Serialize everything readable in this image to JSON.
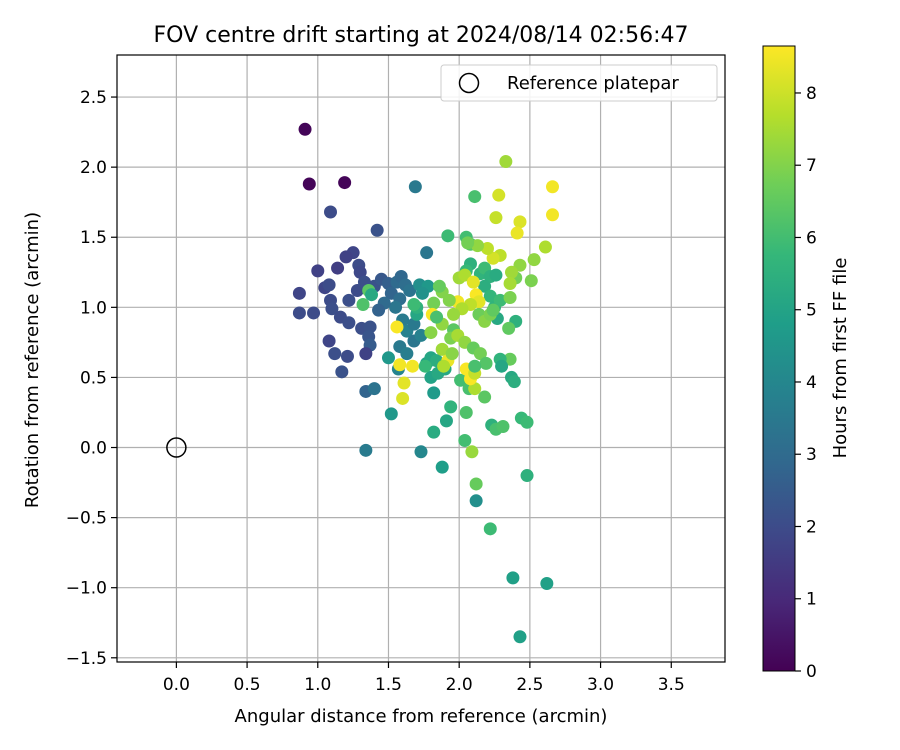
{
  "chart_data": {
    "type": "scatter",
    "title": "FOV centre drift starting at 2024/08/14 02:56:47",
    "xlabel": "Angular distance from reference (arcmin)",
    "ylabel": "Rotation from reference (arcmin)",
    "xlim": [
      -0.42,
      3.88
    ],
    "ylim": [
      -1.53,
      2.8
    ],
    "xticks": [
      0.0,
      0.5,
      1.0,
      1.5,
      2.0,
      2.5,
      3.0,
      3.5
    ],
    "yticks": [
      -1.5,
      -1.0,
      -0.5,
      0.0,
      0.5,
      1.0,
      1.5,
      2.0,
      2.5
    ],
    "xtick_labels": [
      "0.0",
      "0.5",
      "1.0",
      "1.5",
      "2.0",
      "2.5",
      "3.0",
      "3.5"
    ],
    "ytick_labels": [
      "−1.5",
      "−1.0",
      "−0.5",
      "0.0",
      "0.5",
      "1.0",
      "1.5",
      "2.0",
      "2.5"
    ],
    "grid": true,
    "legend": {
      "placement": "top-right",
      "entries": [
        {
          "label": "Reference platepar",
          "marker": "open-circle"
        }
      ]
    },
    "reference_point": {
      "x": 0.0,
      "y": 0.0,
      "label": "Reference platepar"
    },
    "colorbar": {
      "label": "Hours from first FF file",
      "min": 0,
      "max": 8.65,
      "ticks": [
        0,
        1,
        2,
        3,
        4,
        5,
        6,
        7,
        8
      ],
      "tick_labels": [
        "0",
        "1",
        "2",
        "3",
        "4",
        "5",
        "6",
        "7",
        "8"
      ],
      "colormap": "viridis"
    },
    "colormap_stops": [
      "#440154",
      "#482878",
      "#3e4989",
      "#31688e",
      "#26828e",
      "#1f9e89",
      "#35b779",
      "#6ece58",
      "#b5de2b",
      "#fde725"
    ],
    "points": [
      {
        "x": 0.91,
        "y": 2.27,
        "c": 0.1
      },
      {
        "x": 0.94,
        "y": 1.88,
        "c": 0.1
      },
      {
        "x": 1.19,
        "y": 1.89,
        "c": 0.1
      },
      {
        "x": 1.09,
        "y": 1.68,
        "c": 2.0
      },
      {
        "x": 1.42,
        "y": 1.55,
        "c": 2.2
      },
      {
        "x": 1.69,
        "y": 1.86,
        "c": 3.5
      },
      {
        "x": 1.25,
        "y": 1.39,
        "c": 1.8
      },
      {
        "x": 1.2,
        "y": 1.36,
        "c": 1.7
      },
      {
        "x": 1.14,
        "y": 1.28,
        "c": 1.6
      },
      {
        "x": 1.29,
        "y": 1.3,
        "c": 2.0
      },
      {
        "x": 1.3,
        "y": 1.25,
        "c": 1.9
      },
      {
        "x": 1.0,
        "y": 1.26,
        "c": 1.7
      },
      {
        "x": 1.05,
        "y": 1.14,
        "c": 1.8
      },
      {
        "x": 1.08,
        "y": 1.16,
        "c": 2.0
      },
      {
        "x": 0.87,
        "y": 1.1,
        "c": 1.8
      },
      {
        "x": 1.09,
        "y": 1.05,
        "c": 2.0
      },
      {
        "x": 1.1,
        "y": 0.99,
        "c": 2.1
      },
      {
        "x": 0.87,
        "y": 0.96,
        "c": 2.0
      },
      {
        "x": 0.97,
        "y": 0.96,
        "c": 2.0
      },
      {
        "x": 1.16,
        "y": 0.93,
        "c": 2.0
      },
      {
        "x": 1.22,
        "y": 0.89,
        "c": 2.1
      },
      {
        "x": 1.31,
        "y": 0.85,
        "c": 2.1
      },
      {
        "x": 1.37,
        "y": 0.86,
        "c": 2.2
      },
      {
        "x": 1.36,
        "y": 0.79,
        "c": 2.3
      },
      {
        "x": 1.37,
        "y": 0.73,
        "c": 2.5
      },
      {
        "x": 1.08,
        "y": 0.76,
        "c": 1.8
      },
      {
        "x": 1.12,
        "y": 0.67,
        "c": 2.1
      },
      {
        "x": 1.21,
        "y": 0.65,
        "c": 2.0
      },
      {
        "x": 1.34,
        "y": 0.67,
        "c": 1.7
      },
      {
        "x": 1.17,
        "y": 0.54,
        "c": 2.2
      },
      {
        "x": 1.34,
        "y": 0.4,
        "c": 2.8
      },
      {
        "x": 1.4,
        "y": 0.42,
        "c": 3.3
      },
      {
        "x": 1.34,
        "y": -0.02,
        "c": 3.6
      },
      {
        "x": 1.22,
        "y": 1.05,
        "c": 2.1
      },
      {
        "x": 1.28,
        "y": 1.12,
        "c": 2.0
      },
      {
        "x": 1.33,
        "y": 1.18,
        "c": 2.1
      },
      {
        "x": 1.4,
        "y": 1.15,
        "c": 2.2
      },
      {
        "x": 1.45,
        "y": 1.2,
        "c": 2.4
      },
      {
        "x": 1.5,
        "y": 1.17,
        "c": 2.6
      },
      {
        "x": 1.52,
        "y": 1.1,
        "c": 2.8
      },
      {
        "x": 1.56,
        "y": 1.18,
        "c": 3.0
      },
      {
        "x": 1.59,
        "y": 1.22,
        "c": 2.9
      },
      {
        "x": 1.62,
        "y": 1.16,
        "c": 3.1
      },
      {
        "x": 1.65,
        "y": 1.12,
        "c": 3.3
      },
      {
        "x": 1.58,
        "y": 1.06,
        "c": 3.1
      },
      {
        "x": 1.55,
        "y": 1.0,
        "c": 3.4
      },
      {
        "x": 1.47,
        "y": 1.03,
        "c": 3.0
      },
      {
        "x": 1.43,
        "y": 0.98,
        "c": 2.7
      },
      {
        "x": 1.6,
        "y": 0.91,
        "c": 3.6
      },
      {
        "x": 1.63,
        "y": 0.83,
        "c": 3.8
      },
      {
        "x": 1.68,
        "y": 0.88,
        "c": 3.5
      },
      {
        "x": 1.58,
        "y": 0.72,
        "c": 3.5
      },
      {
        "x": 1.63,
        "y": 0.67,
        "c": 3.7
      },
      {
        "x": 1.57,
        "y": 0.56,
        "c": 3.9
      },
      {
        "x": 1.68,
        "y": 0.76,
        "c": 3.4
      },
      {
        "x": 1.73,
        "y": 0.8,
        "c": 3.8
      },
      {
        "x": 1.77,
        "y": 1.39,
        "c": 3.4
      },
      {
        "x": 1.72,
        "y": 1.16,
        "c": 4.3
      },
      {
        "x": 1.78,
        "y": 1.15,
        "c": 4.6
      },
      {
        "x": 1.74,
        "y": 1.1,
        "c": 4.4
      },
      {
        "x": 1.5,
        "y": 0.64,
        "c": 4.6
      },
      {
        "x": 1.52,
        "y": 0.24,
        "c": 4.6
      },
      {
        "x": 1.73,
        "y": -0.03,
        "c": 4.0
      },
      {
        "x": 1.88,
        "y": -0.14,
        "c": 4.8
      },
      {
        "x": 1.82,
        "y": 0.39,
        "c": 4.7
      },
      {
        "x": 1.82,
        "y": 0.11,
        "c": 5.3
      },
      {
        "x": 1.91,
        "y": 0.19,
        "c": 5.1
      },
      {
        "x": 1.94,
        "y": 0.29,
        "c": 5.6
      },
      {
        "x": 1.8,
        "y": 0.5,
        "c": 5.0
      },
      {
        "x": 1.85,
        "y": 0.53,
        "c": 5.2
      },
      {
        "x": 1.9,
        "y": 0.56,
        "c": 5.2
      },
      {
        "x": 1.77,
        "y": 0.6,
        "c": 5.0
      },
      {
        "x": 1.8,
        "y": 0.64,
        "c": 5.1
      },
      {
        "x": 1.84,
        "y": 0.62,
        "c": 5.4
      },
      {
        "x": 1.92,
        "y": 1.51,
        "c": 5.9
      },
      {
        "x": 2.05,
        "y": 1.5,
        "c": 6.0
      },
      {
        "x": 2.08,
        "y": 1.45,
        "c": 6.3
      },
      {
        "x": 2.11,
        "y": 1.79,
        "c": 6.1
      },
      {
        "x": 2.08,
        "y": 1.31,
        "c": 5.5
      },
      {
        "x": 2.05,
        "y": 1.26,
        "c": 5.8
      },
      {
        "x": 2.15,
        "y": 1.24,
        "c": 5.6
      },
      {
        "x": 2.18,
        "y": 1.28,
        "c": 5.9
      },
      {
        "x": 2.22,
        "y": 1.22,
        "c": 5.5
      },
      {
        "x": 2.26,
        "y": 1.23,
        "c": 5.3
      },
      {
        "x": 2.18,
        "y": 1.15,
        "c": 5.4
      },
      {
        "x": 2.22,
        "y": 1.08,
        "c": 5.7
      },
      {
        "x": 2.25,
        "y": 1.0,
        "c": 5.6
      },
      {
        "x": 2.29,
        "y": 1.05,
        "c": 5.9
      },
      {
        "x": 2.27,
        "y": 0.92,
        "c": 5.2
      },
      {
        "x": 2.4,
        "y": 0.9,
        "c": 5.5
      },
      {
        "x": 2.37,
        "y": 0.5,
        "c": 5.2
      },
      {
        "x": 2.39,
        "y": 0.47,
        "c": 5.4
      },
      {
        "x": 2.23,
        "y": 0.16,
        "c": 5.5
      },
      {
        "x": 2.26,
        "y": 0.13,
        "c": 6.1
      },
      {
        "x": 2.31,
        "y": 0.15,
        "c": 6.2
      },
      {
        "x": 2.44,
        "y": 0.21,
        "c": 5.8
      },
      {
        "x": 2.48,
        "y": 0.18,
        "c": 5.9
      },
      {
        "x": 2.48,
        "y": -0.2,
        "c": 5.5
      },
      {
        "x": 2.22,
        "y": -0.58,
        "c": 5.9
      },
      {
        "x": 2.12,
        "y": -0.38,
        "c": 4.3
      },
      {
        "x": 2.38,
        "y": -0.93,
        "c": 4.9
      },
      {
        "x": 2.62,
        "y": -0.97,
        "c": 4.9
      },
      {
        "x": 2.43,
        "y": -1.35,
        "c": 4.9
      },
      {
        "x": 2.04,
        "y": 0.05,
        "c": 6.0
      },
      {
        "x": 2.05,
        "y": 0.25,
        "c": 6.2
      },
      {
        "x": 2.01,
        "y": 0.48,
        "c": 6.0
      },
      {
        "x": 2.07,
        "y": 0.42,
        "c": 6.1
      },
      {
        "x": 2.18,
        "y": 0.36,
        "c": 6.4
      },
      {
        "x": 2.12,
        "y": -0.26,
        "c": 6.6
      },
      {
        "x": 2.09,
        "y": -0.03,
        "c": 7.3
      },
      {
        "x": 2.11,
        "y": 0.42,
        "c": 7.6
      },
      {
        "x": 2.26,
        "y": 1.64,
        "c": 7.9
      },
      {
        "x": 2.28,
        "y": 1.8,
        "c": 8.1
      },
      {
        "x": 2.33,
        "y": 2.04,
        "c": 7.4
      },
      {
        "x": 2.53,
        "y": 1.34,
        "c": 7.2
      },
      {
        "x": 2.51,
        "y": 1.19,
        "c": 6.9
      },
      {
        "x": 2.4,
        "y": 1.21,
        "c": 6.8
      },
      {
        "x": 2.43,
        "y": 1.3,
        "c": 7.2
      },
      {
        "x": 2.37,
        "y": 1.25,
        "c": 7.4
      },
      {
        "x": 2.36,
        "y": 1.17,
        "c": 7.5
      },
      {
        "x": 2.36,
        "y": 1.07,
        "c": 6.9
      },
      {
        "x": 2.35,
        "y": 0.85,
        "c": 6.5
      },
      {
        "x": 2.61,
        "y": 1.43,
        "c": 7.6
      },
      {
        "x": 2.66,
        "y": 1.86,
        "c": 8.5
      },
      {
        "x": 2.66,
        "y": 1.66,
        "c": 8.5
      },
      {
        "x": 2.43,
        "y": 1.61,
        "c": 8.2
      },
      {
        "x": 2.41,
        "y": 1.53,
        "c": 8.4
      },
      {
        "x": 2.29,
        "y": 1.37,
        "c": 7.8
      },
      {
        "x": 2.24,
        "y": 1.35,
        "c": 8.1
      },
      {
        "x": 2.2,
        "y": 1.42,
        "c": 7.8
      },
      {
        "x": 2.13,
        "y": 1.44,
        "c": 7.2
      },
      {
        "x": 2.06,
        "y": 1.46,
        "c": 6.8
      },
      {
        "x": 2.0,
        "y": 1.21,
        "c": 7.4
      },
      {
        "x": 2.04,
        "y": 1.23,
        "c": 7.6
      },
      {
        "x": 2.1,
        "y": 1.18,
        "c": 8.3
      },
      {
        "x": 2.12,
        "y": 1.09,
        "c": 8.6
      },
      {
        "x": 2.14,
        "y": 1.04,
        "c": 8.3
      },
      {
        "x": 2.08,
        "y": 1.02,
        "c": 7.8
      },
      {
        "x": 1.99,
        "y": 1.04,
        "c": 8.5
      },
      {
        "x": 2.02,
        "y": 0.99,
        "c": 7.6
      },
      {
        "x": 1.96,
        "y": 0.95,
        "c": 7.3
      },
      {
        "x": 1.93,
        "y": 1.05,
        "c": 7.0
      },
      {
        "x": 1.88,
        "y": 1.11,
        "c": 7.0
      },
      {
        "x": 1.86,
        "y": 1.15,
        "c": 6.6
      },
      {
        "x": 1.82,
        "y": 1.03,
        "c": 6.8
      },
      {
        "x": 1.81,
        "y": 0.95,
        "c": 8.6
      },
      {
        "x": 1.8,
        "y": 0.82,
        "c": 7.1
      },
      {
        "x": 1.88,
        "y": 0.88,
        "c": 7.2
      },
      {
        "x": 1.96,
        "y": 0.84,
        "c": 6.4
      },
      {
        "x": 1.94,
        "y": 0.78,
        "c": 6.9
      },
      {
        "x": 1.99,
        "y": 0.8,
        "c": 7.5
      },
      {
        "x": 2.04,
        "y": 0.75,
        "c": 7.2
      },
      {
        "x": 2.1,
        "y": 0.71,
        "c": 6.6
      },
      {
        "x": 2.15,
        "y": 0.67,
        "c": 6.8
      },
      {
        "x": 1.88,
        "y": 0.7,
        "c": 7.4
      },
      {
        "x": 1.92,
        "y": 0.62,
        "c": 8.4
      },
      {
        "x": 1.95,
        "y": 0.67,
        "c": 7.1
      },
      {
        "x": 1.89,
        "y": 0.58,
        "c": 7.6
      },
      {
        "x": 2.05,
        "y": 0.56,
        "c": 8.6
      },
      {
        "x": 2.08,
        "y": 0.49,
        "c": 8.6
      },
      {
        "x": 2.11,
        "y": 0.53,
        "c": 7.9
      },
      {
        "x": 2.14,
        "y": 0.95,
        "c": 6.7
      },
      {
        "x": 2.18,
        "y": 0.9,
        "c": 7.1
      },
      {
        "x": 2.22,
        "y": 0.95,
        "c": 6.9
      },
      {
        "x": 2.24,
        "y": 0.98,
        "c": 6.5
      },
      {
        "x": 1.56,
        "y": 0.86,
        "c": 8.6
      },
      {
        "x": 1.58,
        "y": 0.59,
        "c": 8.5
      },
      {
        "x": 1.61,
        "y": 0.46,
        "c": 8.3
      },
      {
        "x": 1.6,
        "y": 0.35,
        "c": 8.2
      },
      {
        "x": 1.67,
        "y": 0.58,
        "c": 8.5
      },
      {
        "x": 2.36,
        "y": 0.63,
        "c": 6.6
      },
      {
        "x": 2.29,
        "y": 0.63,
        "c": 5.6
      },
      {
        "x": 2.19,
        "y": 0.6,
        "c": 6.3
      },
      {
        "x": 1.36,
        "y": 1.12,
        "c": 6.4
      },
      {
        "x": 1.32,
        "y": 1.02,
        "c": 6.2
      },
      {
        "x": 1.38,
        "y": 1.09,
        "c": 5.2
      },
      {
        "x": 1.7,
        "y": 0.95,
        "c": 5.1
      },
      {
        "x": 1.7,
        "y": 1.0,
        "c": 5.5
      },
      {
        "x": 1.68,
        "y": 1.02,
        "c": 5.9
      },
      {
        "x": 1.84,
        "y": 0.93,
        "c": 6.1
      },
      {
        "x": 1.76,
        "y": 0.58,
        "c": 5.8
      },
      {
        "x": 2.11,
        "y": 0.58,
        "c": 6.1
      },
      {
        "x": 2.3,
        "y": 0.58,
        "c": 5.1
      }
    ]
  }
}
